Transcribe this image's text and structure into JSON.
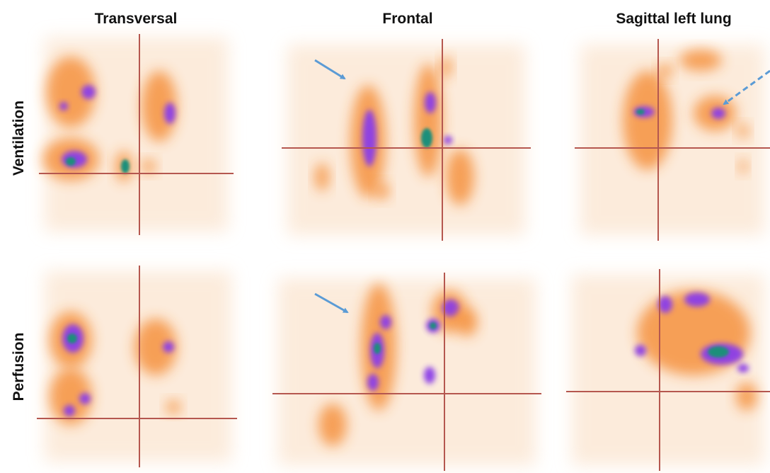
{
  "column_headers": [
    "Transversal",
    "Frontal",
    "Sagittal left lung"
  ],
  "row_labels": [
    "Ventilation",
    "Perfusion"
  ]
}
